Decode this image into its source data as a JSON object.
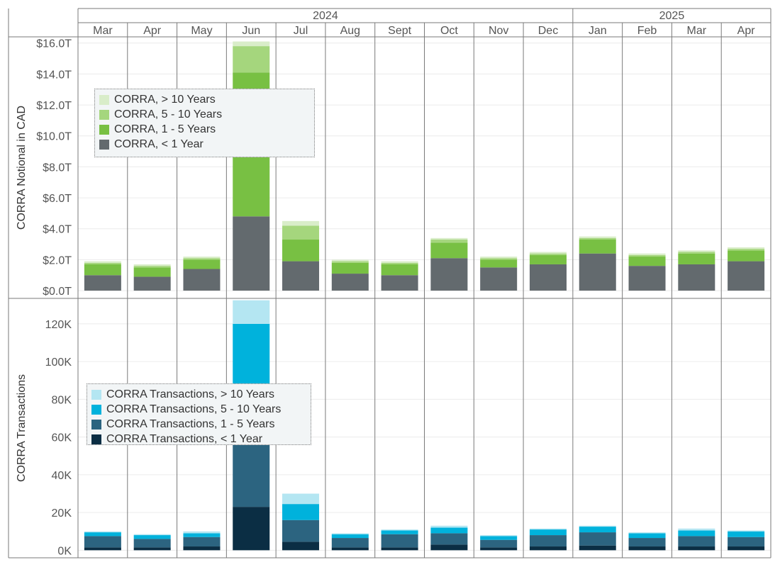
{
  "chart_data": {
    "type": "bar",
    "stacked": true,
    "years": [
      {
        "label": "2024",
        "months": 10
      },
      {
        "label": "2025",
        "months": 4
      }
    ],
    "categories": [
      "Mar",
      "Apr",
      "May",
      "Jun",
      "Jul",
      "Aug",
      "Sept",
      "Oct",
      "Nov",
      "Dec",
      "Jan",
      "Feb",
      "Mar",
      "Apr"
    ],
    "panels": [
      {
        "id": "notional",
        "ylabel": "CORRA Notional in CAD",
        "ylim": [
          -0.5,
          16.4
        ],
        "ticks": [
          0,
          2,
          4,
          6,
          8,
          10,
          12,
          14,
          16
        ],
        "tick_labels": [
          "$0.0T",
          "$2.0T",
          "$4.0T",
          "$6.0T",
          "$8.0T",
          "$10.0T",
          "$12.0T",
          "$14.0T",
          "$16.0T"
        ],
        "legend_position": "top-left",
        "series": [
          {
            "name": "CORRA, < 1 Year",
            "color": "#636a6e",
            "values": [
              1.0,
              0.9,
              1.4,
              4.8,
              1.9,
              1.1,
              1.0,
              2.1,
              1.5,
              1.7,
              2.4,
              1.6,
              1.7,
              1.9
            ]
          },
          {
            "name": "CORRA, 1 - 5 Years",
            "color": "#78c043",
            "values": [
              0.7,
              0.6,
              0.6,
              9.3,
              1.4,
              0.7,
              0.7,
              1.0,
              0.5,
              0.6,
              0.9,
              0.6,
              0.7,
              0.7
            ]
          },
          {
            "name": "CORRA, 5 - 10 Years",
            "color": "#a5d67d",
            "values": [
              0.1,
              0.1,
              0.1,
              1.7,
              0.9,
              0.1,
              0.1,
              0.2,
              0.1,
              0.1,
              0.1,
              0.1,
              0.1,
              0.1
            ]
          },
          {
            "name": "CORRA, > 10 Years",
            "color": "#d9edc9",
            "values": [
              0.1,
              0.1,
              0.1,
              0.3,
              0.3,
              0.1,
              0.1,
              0.1,
              0.1,
              0.1,
              0.1,
              0.1,
              0.1,
              0.1
            ]
          }
        ]
      },
      {
        "id": "transactions",
        "ylabel": "CORRA Transactions",
        "ylim": [
          -4000,
          133500
        ],
        "ticks": [
          0,
          20000,
          40000,
          60000,
          80000,
          100000,
          120000
        ],
        "tick_labels": [
          "0K",
          "20K",
          "40K",
          "60K",
          "80K",
          "100K",
          "120K"
        ],
        "legend_position": "middle-left",
        "series": [
          {
            "name": "CORRA Transactions, < 1 Year",
            "color": "#0b2e44",
            "values": [
              1500,
              1500,
              2000,
              23000,
              4500,
              1500,
              1500,
              3000,
              1500,
              2000,
              2500,
              2000,
              2000,
              2000
            ]
          },
          {
            "name": "CORRA Transactions, 1 - 5 Years",
            "color": "#2c6480",
            "values": [
              6000,
              4500,
              5000,
              41000,
              11500,
              5000,
              7000,
              6000,
              4000,
              6000,
              7000,
              4500,
              5500,
              5000
            ]
          },
          {
            "name": "CORRA Transactions, 5 - 10 Years",
            "color": "#00b2dc",
            "values": [
              2000,
              2000,
              2000,
              56000,
              8500,
              2000,
              2000,
              3000,
              2000,
              3000,
              3000,
              2500,
              3000,
              3000
            ]
          },
          {
            "name": "CORRA Transactions, > 10 Years",
            "color": "#b4e6f2",
            "values": [
              500,
              500,
              1000,
              12500,
              5500,
              500,
              500,
              1000,
              500,
              500,
              500,
              500,
              1000,
              500
            ]
          }
        ]
      }
    ]
  }
}
